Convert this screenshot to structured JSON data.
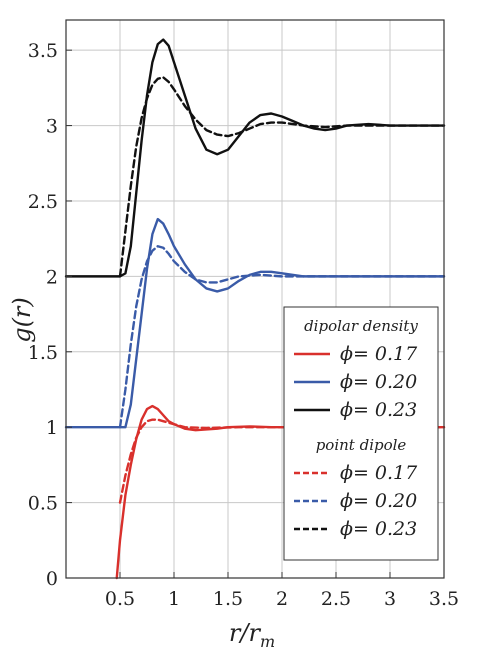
{
  "chart_data": {
    "type": "line",
    "xlabel_main": "r",
    "xlabel_sub": "m",
    "xlabel_sep": "/r",
    "ylabel_main": "g(",
    "ylabel_var": "r",
    "ylabel_end": ")",
    "xlim": [
      0,
      3.5
    ],
    "ylim": [
      0,
      3.7
    ],
    "grid": true,
    "legend_position": "lower-right",
    "x_ticks": [
      {
        "value": 0.5,
        "label": "0.5"
      },
      {
        "value": 1.0,
        "label": "1"
      },
      {
        "value": 1.5,
        "label": "1.5"
      },
      {
        "value": 2.0,
        "label": "2"
      },
      {
        "value": 2.5,
        "label": "2.5"
      },
      {
        "value": 3.0,
        "label": "3"
      },
      {
        "value": 3.5,
        "label": "3.5"
      }
    ],
    "y_ticks": [
      {
        "value": 0,
        "label": "0"
      },
      {
        "value": 0.5,
        "label": "0.5"
      },
      {
        "value": 1.0,
        "label": "1"
      },
      {
        "value": 1.5,
        "label": "1.5"
      },
      {
        "value": 2.0,
        "label": "2"
      },
      {
        "value": 2.5,
        "label": "2.5"
      },
      {
        "value": 3.0,
        "label": "3"
      },
      {
        "value": 3.5,
        "label": "3.5"
      }
    ],
    "legend_groups": [
      {
        "heading": "dipolar density",
        "entries": [
          {
            "label": "ϕ= 0.17",
            "color": "#d9302c",
            "dash": "solid"
          },
          {
            "label": "ϕ= 0.20",
            "color": "#3a5ba8",
            "dash": "solid"
          },
          {
            "label": "ϕ= 0.23",
            "color": "#111111",
            "dash": "solid"
          }
        ]
      },
      {
        "heading": "point dipole",
        "entries": [
          {
            "label": "ϕ= 0.17",
            "color": "#d9302c",
            "dash": "dashed"
          },
          {
            "label": "ϕ= 0.20",
            "color": "#3a5ba8",
            "dash": "dashed"
          },
          {
            "label": "ϕ= 0.23",
            "color": "#111111",
            "dash": "dashed"
          }
        ]
      }
    ],
    "series": [
      {
        "color": "#d9302c",
        "dash": "solid",
        "points": [
          [
            0.47,
            0.0
          ],
          [
            0.5,
            0.25
          ],
          [
            0.55,
            0.55
          ],
          [
            0.6,
            0.75
          ],
          [
            0.65,
            0.92
          ],
          [
            0.7,
            1.05
          ],
          [
            0.75,
            1.12
          ],
          [
            0.8,
            1.14
          ],
          [
            0.85,
            1.12
          ],
          [
            0.9,
            1.08
          ],
          [
            0.95,
            1.04
          ],
          [
            1.0,
            1.02
          ],
          [
            1.1,
            0.99
          ],
          [
            1.2,
            0.98
          ],
          [
            1.3,
            0.985
          ],
          [
            1.4,
            0.99
          ],
          [
            1.5,
            1.0
          ],
          [
            1.7,
            1.005
          ],
          [
            1.9,
            1.0
          ],
          [
            2.2,
            1.0
          ],
          [
            2.6,
            1.0
          ],
          [
            3.0,
            1.0
          ],
          [
            3.5,
            1.0
          ]
        ]
      },
      {
        "color": "#d9302c",
        "dash": "dashed",
        "points": [
          [
            0.5,
            0.5
          ],
          [
            0.55,
            0.68
          ],
          [
            0.6,
            0.82
          ],
          [
            0.65,
            0.93
          ],
          [
            0.7,
            1.0
          ],
          [
            0.75,
            1.04
          ],
          [
            0.8,
            1.05
          ],
          [
            0.85,
            1.05
          ],
          [
            0.9,
            1.04
          ],
          [
            1.0,
            1.02
          ],
          [
            1.1,
            1.0
          ],
          [
            1.3,
            0.995
          ],
          [
            1.6,
            1.0
          ],
          [
            2.0,
            1.0
          ],
          [
            2.5,
            1.0
          ],
          [
            3.0,
            1.0
          ],
          [
            3.5,
            1.0
          ]
        ]
      },
      {
        "color": "#3a5ba8",
        "dash": "solid",
        "points": [
          [
            0.0,
            1.0
          ],
          [
            0.5,
            1.0
          ],
          [
            0.55,
            1.0
          ],
          [
            0.6,
            1.15
          ],
          [
            0.65,
            1.45
          ],
          [
            0.7,
            1.75
          ],
          [
            0.75,
            2.05
          ],
          [
            0.8,
            2.28
          ],
          [
            0.85,
            2.38
          ],
          [
            0.9,
            2.35
          ],
          [
            0.95,
            2.28
          ],
          [
            1.0,
            2.2
          ],
          [
            1.1,
            2.08
          ],
          [
            1.2,
            1.98
          ],
          [
            1.3,
            1.92
          ],
          [
            1.4,
            1.9
          ],
          [
            1.5,
            1.92
          ],
          [
            1.6,
            1.97
          ],
          [
            1.7,
            2.01
          ],
          [
            1.8,
            2.03
          ],
          [
            1.9,
            2.03
          ],
          [
            2.0,
            2.02
          ],
          [
            2.2,
            2.0
          ],
          [
            2.5,
            2.0
          ],
          [
            3.0,
            2.0
          ],
          [
            3.5,
            2.0
          ]
        ]
      },
      {
        "color": "#3a5ba8",
        "dash": "dashed",
        "points": [
          [
            0.5,
            1.0
          ],
          [
            0.55,
            1.25
          ],
          [
            0.6,
            1.55
          ],
          [
            0.65,
            1.8
          ],
          [
            0.7,
            1.98
          ],
          [
            0.75,
            2.1
          ],
          [
            0.8,
            2.17
          ],
          [
            0.85,
            2.2
          ],
          [
            0.9,
            2.19
          ],
          [
            0.95,
            2.15
          ],
          [
            1.0,
            2.1
          ],
          [
            1.1,
            2.03
          ],
          [
            1.2,
            1.98
          ],
          [
            1.3,
            1.96
          ],
          [
            1.4,
            1.96
          ],
          [
            1.5,
            1.98
          ],
          [
            1.6,
            2.0
          ],
          [
            1.8,
            2.01
          ],
          [
            2.0,
            2.0
          ],
          [
            2.5,
            2.0
          ],
          [
            3.0,
            2.0
          ],
          [
            3.5,
            2.0
          ]
        ]
      },
      {
        "color": "#111111",
        "dash": "solid",
        "points": [
          [
            0.0,
            2.0
          ],
          [
            0.5,
            2.0
          ],
          [
            0.55,
            2.02
          ],
          [
            0.6,
            2.2
          ],
          [
            0.65,
            2.55
          ],
          [
            0.7,
            2.9
          ],
          [
            0.75,
            3.2
          ],
          [
            0.8,
            3.42
          ],
          [
            0.85,
            3.54
          ],
          [
            0.9,
            3.57
          ],
          [
            0.95,
            3.53
          ],
          [
            1.0,
            3.42
          ],
          [
            1.1,
            3.2
          ],
          [
            1.2,
            2.98
          ],
          [
            1.3,
            2.84
          ],
          [
            1.4,
            2.81
          ],
          [
            1.5,
            2.84
          ],
          [
            1.6,
            2.93
          ],
          [
            1.7,
            3.02
          ],
          [
            1.8,
            3.07
          ],
          [
            1.9,
            3.08
          ],
          [
            2.0,
            3.06
          ],
          [
            2.1,
            3.03
          ],
          [
            2.2,
            3.0
          ],
          [
            2.3,
            2.98
          ],
          [
            2.4,
            2.97
          ],
          [
            2.5,
            2.98
          ],
          [
            2.6,
            3.0
          ],
          [
            2.8,
            3.01
          ],
          [
            3.0,
            3.0
          ],
          [
            3.5,
            3.0
          ]
        ]
      },
      {
        "color": "#111111",
        "dash": "dashed",
        "points": [
          [
            0.5,
            2.0
          ],
          [
            0.55,
            2.3
          ],
          [
            0.6,
            2.6
          ],
          [
            0.65,
            2.86
          ],
          [
            0.7,
            3.05
          ],
          [
            0.75,
            3.18
          ],
          [
            0.8,
            3.27
          ],
          [
            0.85,
            3.31
          ],
          [
            0.9,
            3.32
          ],
          [
            0.95,
            3.29
          ],
          [
            1.0,
            3.24
          ],
          [
            1.1,
            3.13
          ],
          [
            1.2,
            3.04
          ],
          [
            1.3,
            2.97
          ],
          [
            1.4,
            2.94
          ],
          [
            1.5,
            2.93
          ],
          [
            1.6,
            2.95
          ],
          [
            1.7,
            2.98
          ],
          [
            1.8,
            3.01
          ],
          [
            1.9,
            3.02
          ],
          [
            2.0,
            3.02
          ],
          [
            2.2,
            3.0
          ],
          [
            2.4,
            2.99
          ],
          [
            2.6,
            3.0
          ],
          [
            3.0,
            3.0
          ],
          [
            3.5,
            3.0
          ]
        ]
      }
    ]
  }
}
